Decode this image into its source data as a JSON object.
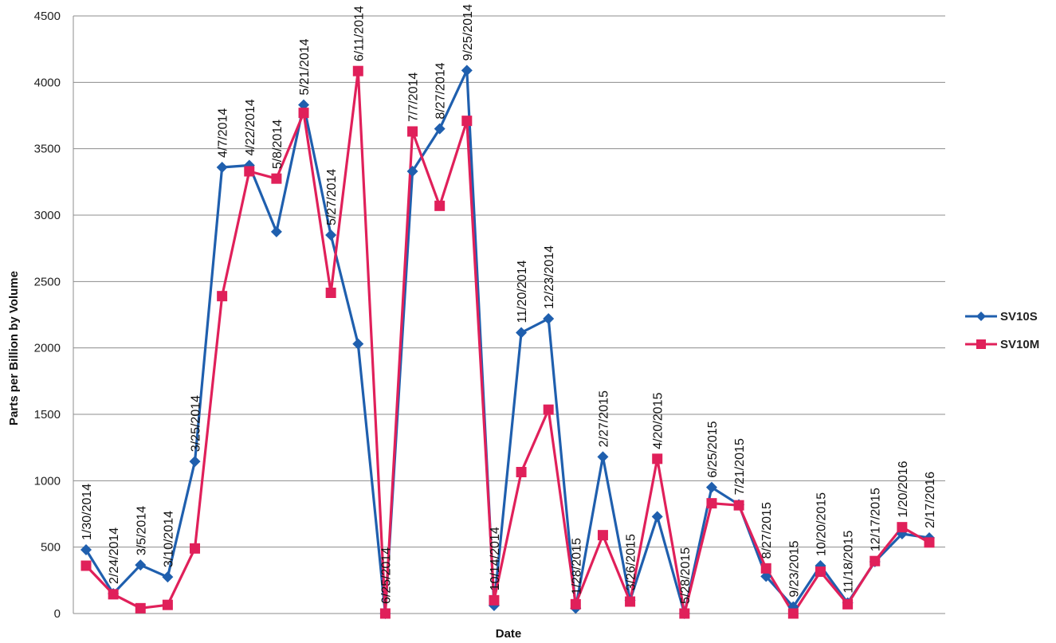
{
  "chart_data": {
    "type": "line",
    "ylabel": "Parts per Billion by Volume",
    "xlabel": "Date",
    "ylim": [
      0,
      4500
    ],
    "yticks": [
      0,
      500,
      1000,
      1500,
      2000,
      2500,
      3000,
      3500,
      4000,
      4500
    ],
    "grid": "horizontal",
    "legend_position": "right",
    "categories": [
      "1/30/2014",
      "2/24/2014",
      "3/5/2014",
      "3/10/2014",
      "3/25/2014",
      "4/7/2014",
      "4/22/2014",
      "5/8/2014",
      "5/21/2014",
      "5/27/2014",
      "6/11/2014",
      "6/25/2014",
      "7/7/2014",
      "8/27/2014",
      "9/25/2014",
      "10/14/2014",
      "11/20/2014",
      "12/23/2014",
      "1/28/2015",
      "2/27/2015",
      "3/26/2015",
      "4/20/2015",
      "5/28/2015",
      "6/25/2015",
      "7/21/2015",
      "8/27/2015",
      "9/23/2015",
      "10/20/2015",
      "11/18/2015",
      "12/17/2015",
      "1/20/2016",
      "2/17/2016"
    ],
    "x_tick_labels": [
      "1/30/2014",
      "2/24/2014",
      "3/5/2014",
      "3/10/2014",
      "3/25/2014",
      "4/7/2014",
      "4/22/2014",
      "5/8/2014",
      "5/21/2014",
      "5/27/2014",
      "6/11/2014",
      "6/25/2014",
      "7/7/2014",
      "8/27/2014",
      "9/25/2014",
      "10/14/2014",
      "11/20/2014",
      "12/23/2014",
      "1/28/2015",
      "2/27/2015",
      "3/26/2015",
      "4/20/2015",
      "5/28/2015",
      "6/25/2015",
      "7/21/2015",
      "8/27/2015",
      "9/23/2015",
      "10/20/2015",
      "11/18/2015",
      "12/17/2015",
      "1/20/2016",
      "2/17/2016"
    ],
    "series": [
      {
        "name": "SV10S",
        "color": "#1f5fae",
        "marker": "diamond",
        "values": [
          480,
          150,
          365,
          275,
          1145,
          3360,
          3375,
          2875,
          3830,
          2850,
          2030,
          0,
          3330,
          3650,
          4090,
          60,
          2115,
          2220,
          40,
          1180,
          100,
          730,
          0,
          950,
          820,
          280,
          50,
          360,
          80,
          390,
          600,
          570
        ]
      },
      {
        "name": "SV10M",
        "color": "#e0205a",
        "marker": "square",
        "values": [
          360,
          145,
          40,
          65,
          490,
          2390,
          3330,
          3275,
          3770,
          2415,
          4085,
          0,
          3630,
          3070,
          3710,
          100,
          1065,
          1535,
          70,
          590,
          90,
          1165,
          0,
          830,
          815,
          340,
          0,
          315,
          70,
          395,
          650,
          535
        ]
      }
    ]
  },
  "y_tick_labels": [
    "0",
    "500",
    "1000",
    "1500",
    "2000",
    "2500",
    "3000",
    "3500",
    "4000",
    "4500"
  ],
  "legend": {
    "items": [
      "SV10S",
      "SV10M"
    ]
  }
}
